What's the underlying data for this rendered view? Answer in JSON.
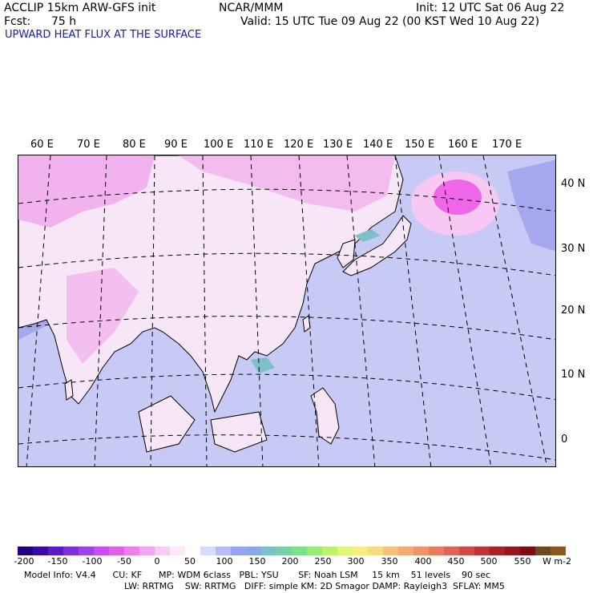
{
  "header": {
    "model": "ACCLIP 15km ARW-GFS init",
    "center": "NCAR/MMM",
    "init": "Init: 12 UTC Sat 06 Aug 22",
    "fcst_label": "Fcst:",
    "fcst_value": "75 h",
    "valid": "Valid: 15 UTC Tue 09 Aug 22 (00 KST Wed 10 Aug 22)",
    "field": "UPWARD HEAT FLUX AT THE SURFACE"
  },
  "map": {
    "lon_labels": [
      "60 E",
      "70 E",
      "80 E",
      "90 E",
      "100 E",
      "110 E",
      "120 E",
      "130 E",
      "140 E",
      "150 E",
      "160 E",
      "170 E"
    ],
    "lat_labels": [
      "40 N",
      "30 N",
      "20 N",
      "10 N",
      "0"
    ],
    "colors": {
      "ocean": "#c8caf6",
      "ocean_dark": "#a6a8ee",
      "land_light": "#f6e6f6",
      "land_pink": "#f2b2ee",
      "hot_pink": "#ee55e6",
      "coastline": "#000000",
      "grid": "#000000"
    }
  },
  "colorbar": {
    "tick_labels": [
      "-200",
      "-150",
      "-100",
      "-50",
      "0",
      "50",
      "100",
      "150",
      "200",
      "250",
      "300",
      "350",
      "400",
      "450",
      "500",
      "550"
    ],
    "units": "W m-2",
    "colors": [
      "#22007e",
      "#3b0aa4",
      "#5a1ac6",
      "#7d2fd8",
      "#a040e8",
      "#c650ee",
      "#e060ec",
      "#ee80ec",
      "#f2a8ee",
      "#f6ccf4",
      "#fbe8fb",
      "#ffffff",
      "#d8dcfa",
      "#b6bcf4",
      "#98a4ee",
      "#8aa8e6",
      "#7ec0c8",
      "#78d0a8",
      "#7ce08a",
      "#98ea78",
      "#c0f070",
      "#e0f478",
      "#f2ee80",
      "#f4dc80",
      "#f4c27a",
      "#f2ab72",
      "#ee9468",
      "#e87c60",
      "#de6458",
      "#d04a48",
      "#bc343a",
      "#a6222c",
      "#901622",
      "#7c0c18",
      "#6a4a20",
      "#8a5a1e"
    ]
  },
  "footer": {
    "line1": "Model Info: V4.4      CU: KF      MP: WDM 6class   PBL: YSU       SF: Noah LSM     15 km    51 levels    90 sec",
    "line2": "LW: RRTMG    SW: RRTMG   DIFF: simple KM: 2D Smagor DAMP: Rayleigh3  SFLAY: MM5"
  }
}
